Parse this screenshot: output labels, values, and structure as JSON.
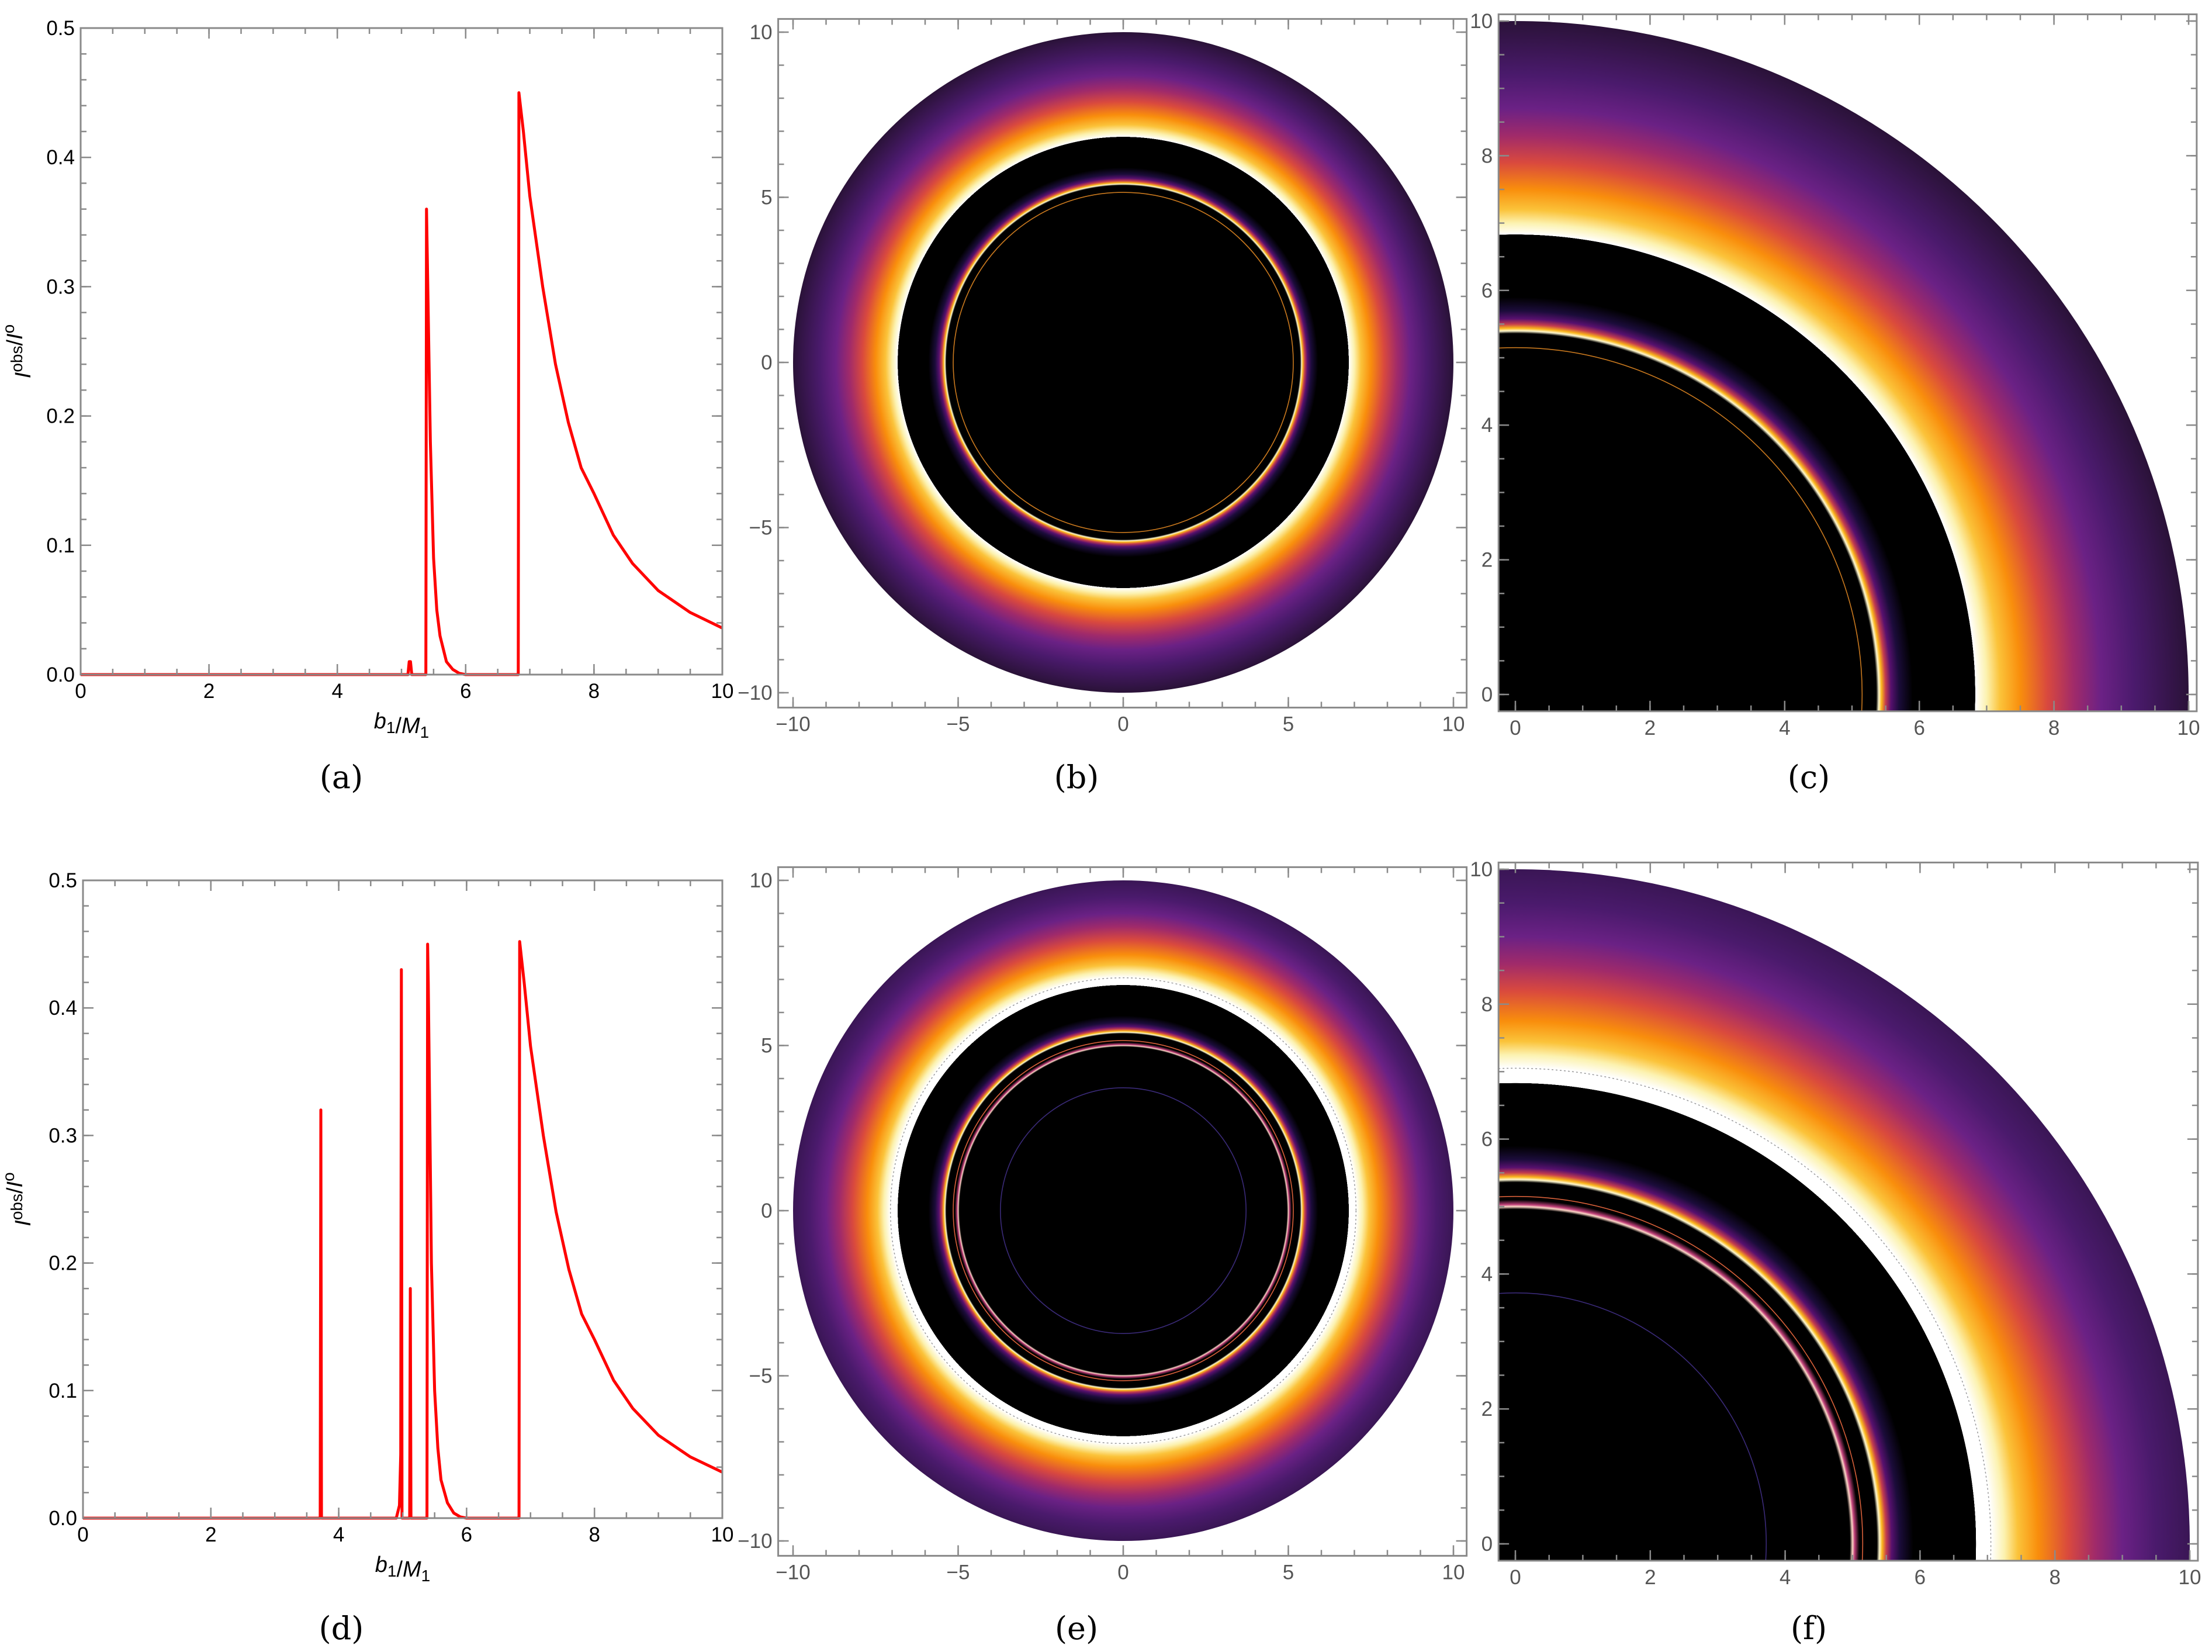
{
  "colors": {
    "curve": "#ff0000",
    "frame": "#8a8a8a",
    "shadow": "#000000",
    "colormap": [
      "#ffffff",
      "#fcf2b0",
      "#fbc33a",
      "#f98e0c",
      "#d9493e",
      "#a02a6a",
      "#6b2185",
      "#4a1a6c",
      "#2a1238"
    ]
  },
  "chart_data": [
    {
      "id": "a",
      "caption": "(a)",
      "type": "line",
      "xlabel": {
        "b": "b",
        "bsub": "1",
        "sep": "/",
        "m": "M",
        "msub": "1"
      },
      "ylabel": {
        "i1": "I",
        "sup1": "obs",
        "sep": "/",
        "i2": "I",
        "sup2": "o"
      },
      "xlim": [
        0,
        10
      ],
      "ylim": [
        0,
        0.5
      ],
      "xticks": [
        0,
        2,
        4,
        6,
        8,
        10
      ],
      "xtick_labels": [
        "0",
        "2",
        "4",
        "6",
        "8",
        "10"
      ],
      "yticks": [
        0,
        0.1,
        0.2,
        0.3,
        0.4,
        0.5
      ],
      "ytick_labels": [
        "0.0",
        "0.1",
        "0.2",
        "0.3",
        "0.4",
        "0.5"
      ],
      "x": [
        0,
        5.1,
        5.12,
        5.14,
        5.16,
        5.38,
        5.39,
        5.4,
        5.45,
        5.5,
        5.55,
        5.6,
        5.7,
        5.8,
        5.9,
        6.0,
        6.82,
        6.83,
        6.9,
        7.0,
        7.2,
        7.4,
        7.6,
        7.8,
        8.0,
        8.3,
        8.6,
        9.0,
        9.5,
        10
      ],
      "y": [
        0,
        0,
        0.01,
        0.01,
        0,
        0,
        0.36,
        0.33,
        0.18,
        0.09,
        0.05,
        0.03,
        0.01,
        0.004,
        0.001,
        0,
        0,
        0.45,
        0.42,
        0.37,
        0.3,
        0.24,
        0.195,
        0.16,
        0.14,
        0.108,
        0.086,
        0.065,
        0.048,
        0.036
      ]
    },
    {
      "id": "b",
      "caption": "(b)",
      "type": "image",
      "xlim": [
        -10,
        10
      ],
      "ylim": [
        -10,
        10
      ],
      "xticks": [
        -10,
        -5,
        0,
        5,
        10
      ],
      "xtick_labels": [
        "−10",
        "−5",
        "0",
        "5",
        "10"
      ],
      "yticks": [
        -10,
        -5,
        0,
        5,
        10
      ],
      "ytick_labels": [
        "−10",
        "−5",
        "0",
        "5",
        "10"
      ],
      "shadow_radius": 6.83,
      "emission_range": [
        6.83,
        10
      ],
      "rings": [
        5.4,
        5.15
      ]
    },
    {
      "id": "c",
      "caption": "(c)",
      "type": "image",
      "xlim": [
        0,
        10
      ],
      "ylim": [
        0,
        10
      ],
      "xticks": [
        0,
        2,
        4,
        6,
        8,
        10
      ],
      "xtick_labels": [
        "0",
        "2",
        "4",
        "6",
        "8",
        "10"
      ],
      "yticks": [
        0,
        2,
        4,
        6,
        8,
        10
      ],
      "ytick_labels": [
        "0",
        "2",
        "4",
        "6",
        "8",
        "10"
      ],
      "shadow_radius": 6.83,
      "emission_range": [
        6.83,
        10
      ],
      "rings": [
        5.4,
        5.15
      ]
    },
    {
      "id": "d",
      "caption": "(d)",
      "type": "line",
      "xlabel": {
        "b": "b",
        "bsub": "1",
        "sep": "/",
        "m": "M",
        "msub": "1"
      },
      "ylabel": {
        "i1": "I",
        "sup1": "obs",
        "sep": "/",
        "i2": "I",
        "sup2": "o"
      },
      "xlim": [
        0,
        10
      ],
      "ylim": [
        0,
        0.5
      ],
      "xticks": [
        0,
        2,
        4,
        6,
        8,
        10
      ],
      "xtick_labels": [
        "0",
        "2",
        "4",
        "6",
        "8",
        "10"
      ],
      "yticks": [
        0,
        0.1,
        0.2,
        0.3,
        0.4,
        0.5
      ],
      "ytick_labels": [
        "0.0",
        "0.1",
        "0.2",
        "0.3",
        "0.4",
        "0.5"
      ],
      "x": [
        0,
        3.71,
        3.72,
        3.73,
        4.9,
        4.95,
        4.97,
        4.98,
        4.99,
        5.11,
        5.12,
        5.13,
        5.38,
        5.39,
        5.4,
        5.45,
        5.5,
        5.55,
        5.6,
        5.7,
        5.8,
        5.9,
        6.0,
        6.82,
        6.83,
        6.9,
        7.0,
        7.2,
        7.4,
        7.6,
        7.8,
        8.0,
        8.3,
        8.6,
        9.0,
        9.5,
        10
      ],
      "y": [
        0,
        0,
        0.32,
        0,
        0,
        0.01,
        0.05,
        0.43,
        0,
        0,
        0.18,
        0,
        0,
        0.45,
        0.42,
        0.2,
        0.1,
        0.055,
        0.03,
        0.012,
        0.004,
        0.001,
        0,
        0,
        0.452,
        0.42,
        0.37,
        0.3,
        0.24,
        0.195,
        0.16,
        0.14,
        0.108,
        0.086,
        0.065,
        0.048,
        0.036
      ]
    },
    {
      "id": "e",
      "caption": "(e)",
      "type": "image",
      "xlim": [
        -10,
        10
      ],
      "ylim": [
        -10,
        10
      ],
      "xticks": [
        -10,
        -5,
        0,
        5,
        10
      ],
      "xtick_labels": [
        "−10",
        "−5",
        "0",
        "5",
        "10"
      ],
      "yticks": [
        -10,
        -5,
        0,
        5,
        10
      ],
      "ytick_labels": [
        "−10",
        "−5",
        "0",
        "5",
        "10"
      ],
      "shadow_radius": 6.83,
      "emission_range": [
        7.05,
        10
      ],
      "rings": [
        5.4,
        5.15,
        5.0,
        3.72
      ]
    },
    {
      "id": "f",
      "caption": "(f)",
      "type": "image",
      "xlim": [
        0,
        10
      ],
      "ylim": [
        0,
        10
      ],
      "xticks": [
        0,
        2,
        4,
        6,
        8,
        10
      ],
      "xtick_labels": [
        "0",
        "2",
        "4",
        "6",
        "8",
        "10"
      ],
      "yticks": [
        0,
        2,
        4,
        6,
        8,
        10
      ],
      "ytick_labels": [
        "0",
        "2",
        "4",
        "6",
        "8",
        "10"
      ],
      "shadow_radius": 6.83,
      "emission_range": [
        7.05,
        10
      ],
      "rings": [
        5.4,
        5.15,
        5.0,
        3.72
      ]
    }
  ]
}
